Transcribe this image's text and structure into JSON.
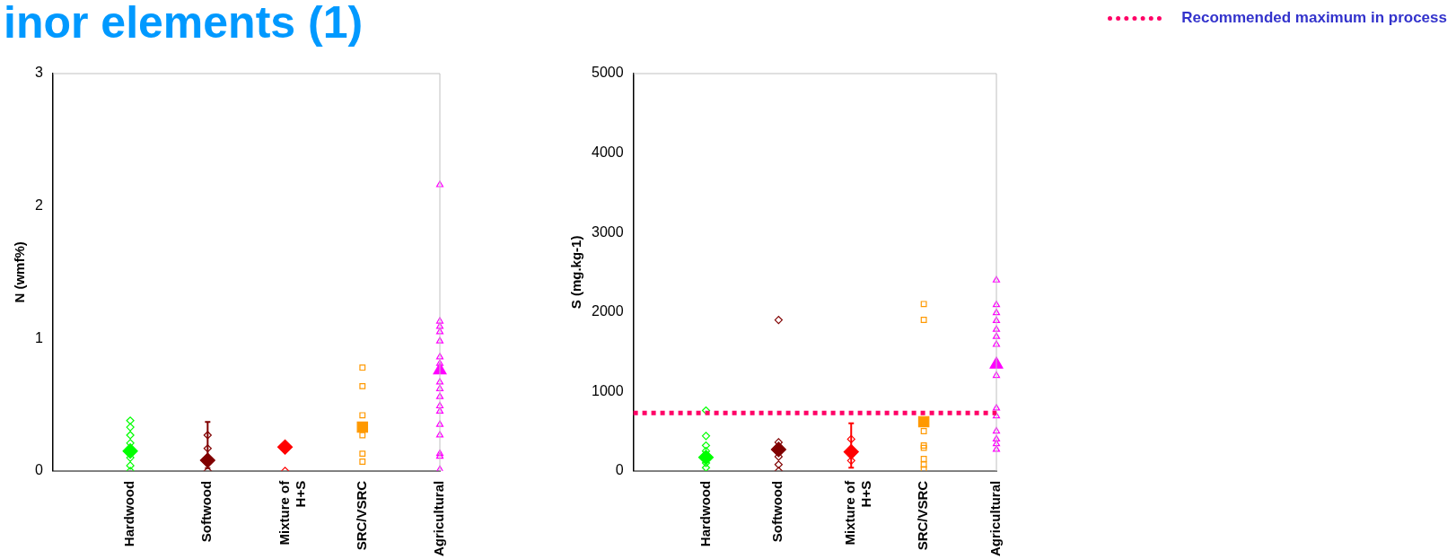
{
  "chart_data": [
    {
      "type": "scatter",
      "title": "inor elements (1)",
      "ylabel": "N (wmf%)",
      "categories": [
        null,
        "Hardwood",
        "Softwood",
        "Mixture of H+S",
        "SRC/VSRC",
        "Agricultural"
      ],
      "ylim": [
        0,
        3
      ],
      "yticks": [
        0,
        1,
        2,
        3
      ],
      "grid": false,
      "series": [
        {
          "color": "#00ff00",
          "marker": "diamond",
          "x": [
            "Hardwood",
            "Hardwood",
            "Hardwood",
            "Hardwood",
            "Hardwood",
            "Hardwood",
            "Hardwood",
            "Hardwood",
            "Hardwood",
            "Hardwood",
            "Hardwood",
            "Hardwood",
            "Hardwood",
            "Hardwood",
            "Hardwood",
            "Hardwood"
          ],
          "values": [
            0.38,
            0.33,
            0.27,
            0.21,
            0.1,
            0.04,
            0,
            null,
            null,
            null,
            null,
            null,
            null,
            null,
            null,
            null
          ]
        },
        {
          "color": "#00ff00",
          "marker": "diamond",
          "x": [
            "Hardwood"
          ],
          "values": [
            0.15
          ],
          "errors": [
            null
          ]
        },
        {
          "color": "#800000",
          "marker": "diamond",
          "x": [
            "Softwood",
            "Softwood",
            "Softwood",
            "Softwood"
          ],
          "values": [
            0.27,
            0.17,
            null,
            0
          ]
        },
        {
          "color": "#800000",
          "marker": "diamond",
          "x": [
            "Softwood"
          ],
          "values": [
            0.08
          ],
          "errors": [
            [
              0.02,
              0.37
            ]
          ]
        },
        {
          "color": "#ff0000",
          "marker": "diamond",
          "x": [
            "Mixture of H+S",
            "Mixture of H+S",
            "Mixture of H+S"
          ],
          "values": [
            null,
            null,
            0
          ]
        },
        {
          "color": "#ff0000",
          "marker": "diamond",
          "x": [
            "Mixture of H+S"
          ],
          "values": [
            0.18
          ],
          "errors": [
            null
          ]
        },
        {
          "color": "#ff9900",
          "marker": "square",
          "x": [
            "SRC/VSRC",
            "SRC/VSRC",
            "SRC/VSRC",
            "SRC/VSRC",
            "SRC/VSRC",
            "SRC/VSRC",
            "SRC/VSRC"
          ],
          "values": [
            0.78,
            0.64,
            0.42,
            null,
            0.27,
            0.13,
            0.07
          ]
        },
        {
          "color": "#ff9900",
          "marker": "square",
          "x": [
            "SRC/VSRC"
          ],
          "values": [
            0.33
          ],
          "errors": [
            null
          ]
        },
        {
          "color": "#ff00ff",
          "marker": "triangle",
          "x": [
            "Agricultural",
            "Agricultural",
            "Agricultural",
            "Agricultural",
            "Agricultural",
            "Agricultural",
            "Agricultural",
            "Agricultural",
            "Agricultural",
            "Agricultural",
            "Agricultural",
            "Agricultural",
            "Agricultural",
            "Agricultural",
            "Agricultural",
            "Agricultural",
            "Agricultural"
          ],
          "values": [
            2.16,
            1.13,
            1.09,
            1.05,
            0.98,
            0.86,
            0.81,
            0.67,
            0.62,
            0.56,
            0.49,
            0.45,
            0.35,
            0.27,
            0.13,
            0.11,
            0.01
          ]
        },
        {
          "color": "#ff00ff",
          "marker": "triangle",
          "x": [
            "Agricultural"
          ],
          "values": [
            0.76
          ],
          "errors": [
            null
          ]
        }
      ]
    },
    {
      "type": "scatter",
      "ylabel": "S (mg.kg-1)",
      "categories": [
        null,
        "Hardwood",
        "Softwood",
        "Mixture of H+S",
        "SRC/VSRC",
        "Agricultural"
      ],
      "ylim": [
        0,
        5000
      ],
      "yticks": [
        0,
        1000,
        2000,
        3000,
        4000,
        5000
      ],
      "grid": false,
      "legend": "top right",
      "ref_lines": [
        {
          "axis": "y",
          "value": 730,
          "label": "Recommended maximum in process",
          "color": "#ff0066",
          "line_style": "dotted"
        }
      ],
      "series": [
        {
          "color": "#00ff00",
          "marker": "diamond",
          "x": [
            "Hardwood",
            "Hardwood",
            "Hardwood",
            "Hardwood",
            "Hardwood",
            "Hardwood",
            "Hardwood",
            "Hardwood"
          ],
          "values": [
            760,
            440,
            320,
            250,
            null,
            100,
            40,
            null
          ]
        },
        {
          "color": "#00ff00",
          "marker": "diamond",
          "x": [
            "Hardwood"
          ],
          "values": [
            170
          ],
          "errors": [
            null
          ]
        },
        {
          "color": "#800000",
          "marker": "diamond",
          "x": [
            "Softwood",
            "Softwood",
            "Softwood",
            "Softwood",
            "Softwood",
            "Softwood"
          ],
          "values": [
            1900,
            360,
            null,
            180,
            80,
            0
          ]
        },
        {
          "color": "#800000",
          "marker": "diamond",
          "x": [
            "Softwood"
          ],
          "values": [
            270
          ],
          "errors": [
            null
          ]
        },
        {
          "color": "#ff0000",
          "marker": "diamond",
          "x": [
            "Mixture of H+S",
            "Mixture of H+S",
            "Mixture of H+S"
          ],
          "values": [
            400,
            130,
            null
          ]
        },
        {
          "color": "#ff0000",
          "marker": "diamond",
          "x": [
            "Mixture of H+S"
          ],
          "values": [
            240
          ],
          "errors": [
            [
              40,
              600
            ]
          ]
        },
        {
          "color": "#ff9900",
          "marker": "square",
          "x": [
            "SRC/VSRC",
            "SRC/VSRC",
            "SRC/VSRC",
            "SRC/VSRC",
            "SRC/VSRC",
            "SRC/VSRC",
            "SRC/VSRC",
            "SRC/VSRC"
          ],
          "values": [
            2100,
            1900,
            500,
            320,
            290,
            150,
            80,
            20
          ]
        },
        {
          "color": "#ff9900",
          "marker": "square",
          "x": [
            "SRC/VSRC"
          ],
          "values": [
            620
          ],
          "errors": [
            null
          ]
        },
        {
          "color": "#ff00ff",
          "marker": "triangle",
          "x": [
            "Agricultural",
            "Agricultural",
            "Agricultural",
            "Agricultural",
            "Agricultural",
            "Agricultural",
            "Agricultural",
            "Agricultural",
            "Agricultural",
            "Agricultural",
            "Agricultural",
            "Agricultural",
            "Agricultural",
            "Agricultural"
          ],
          "values": [
            2400,
            2090,
            1990,
            1890,
            1780,
            1690,
            1590,
            1200,
            790,
            690,
            500,
            400,
            340,
            270
          ]
        },
        {
          "color": "#ff00ff",
          "marker": "triangle",
          "x": [
            "Agricultural"
          ],
          "values": [
            1340
          ],
          "errors": [
            null
          ]
        }
      ]
    }
  ]
}
